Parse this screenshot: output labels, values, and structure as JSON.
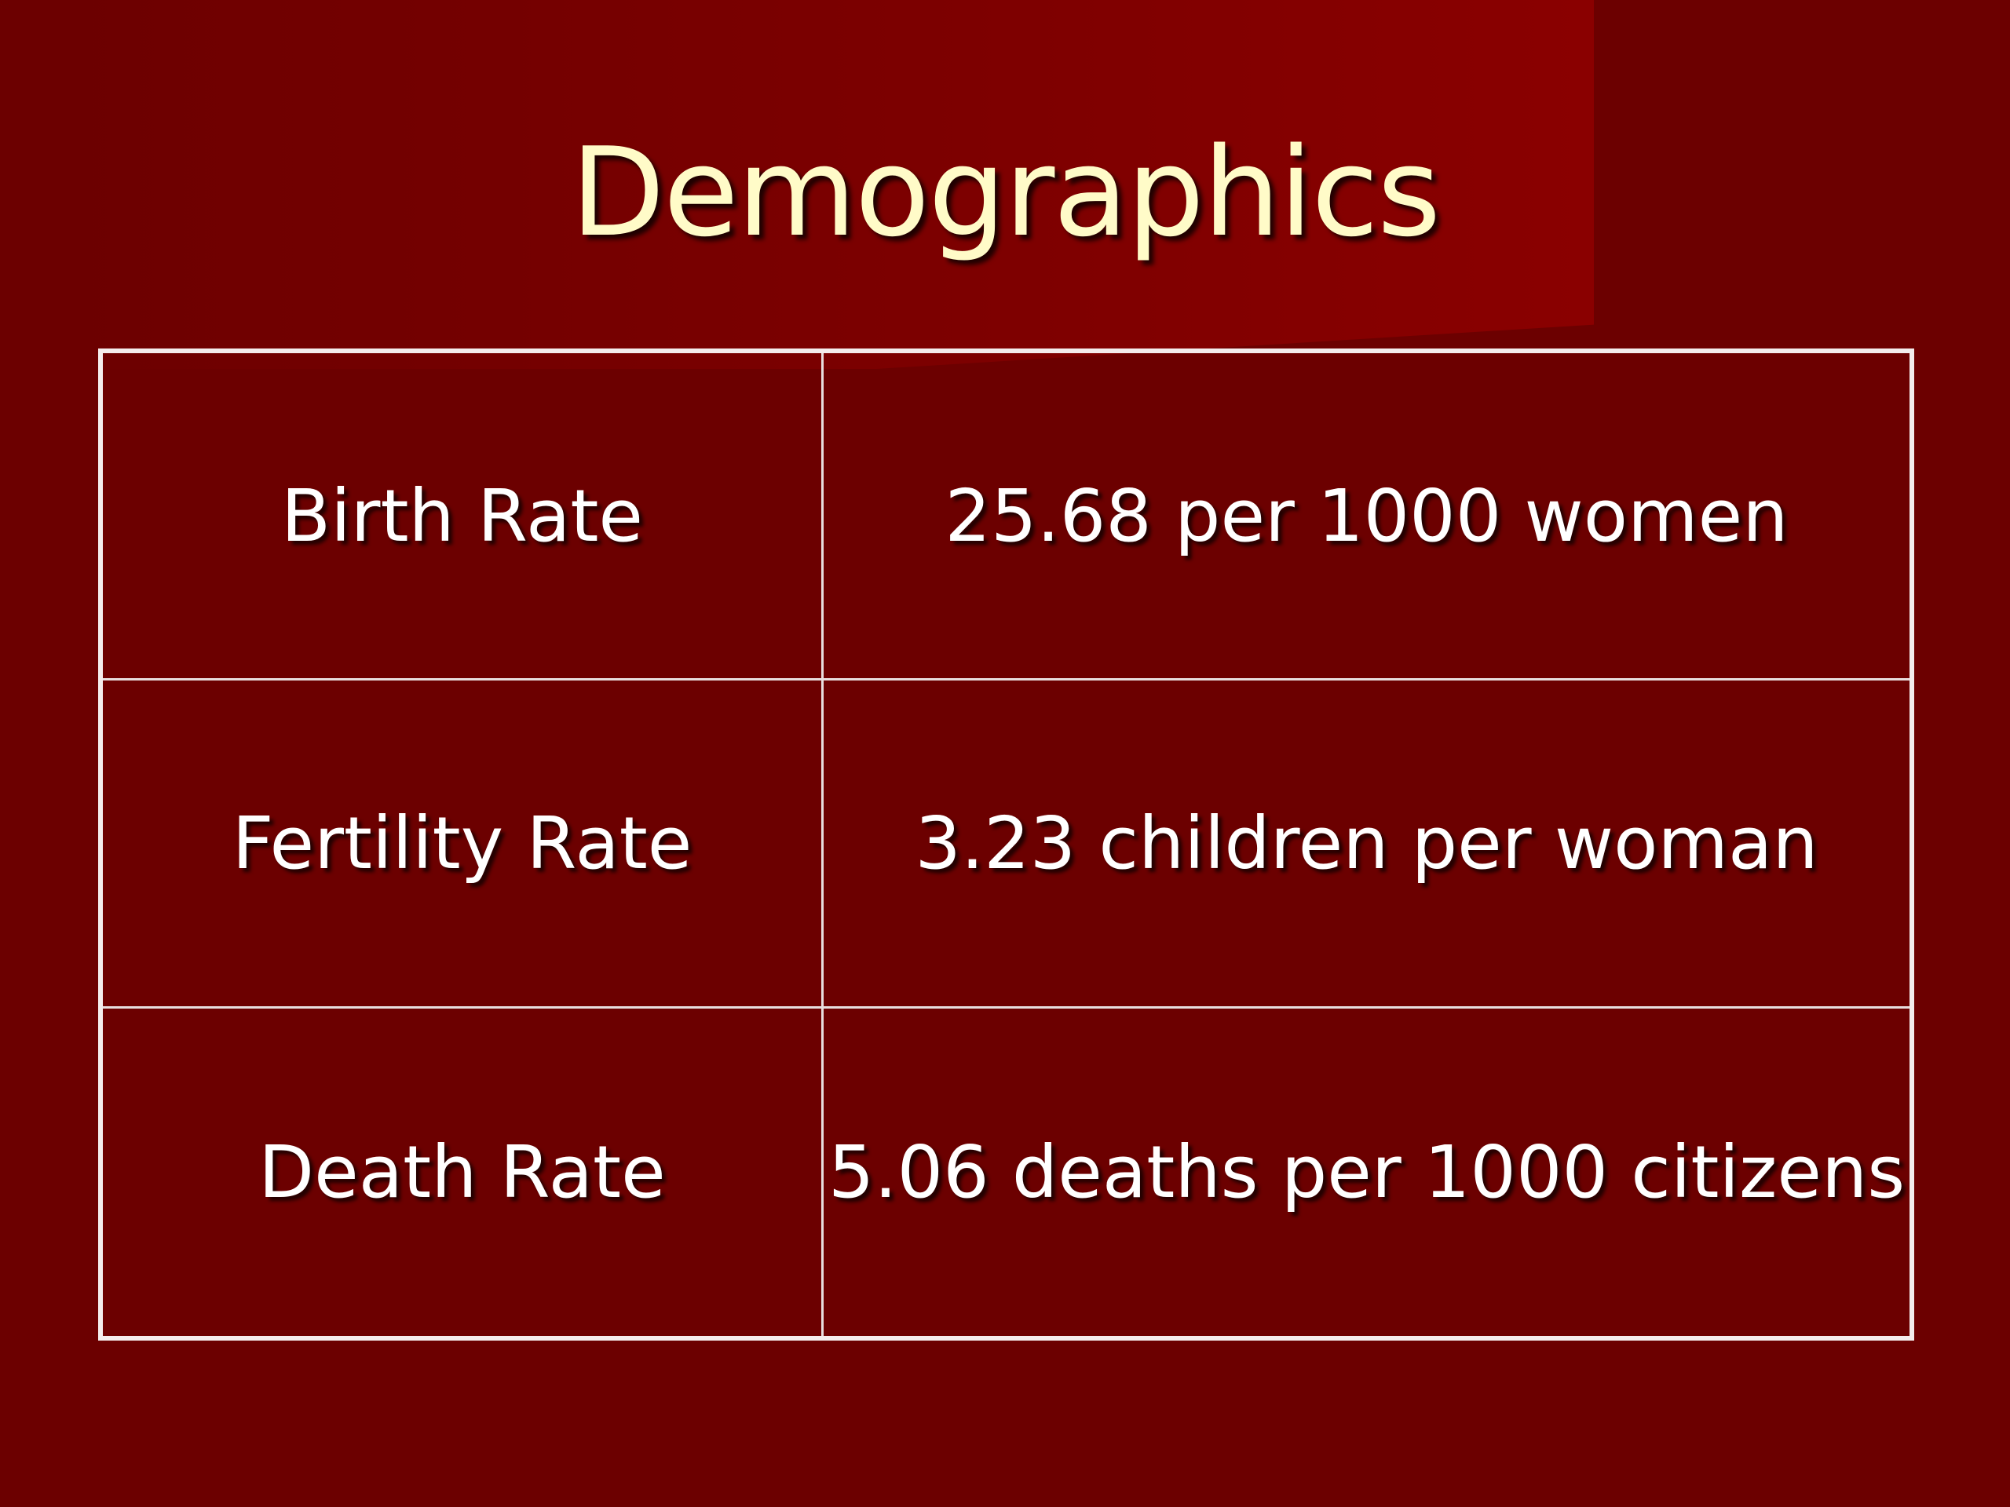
{
  "slide": {
    "title": "Demographics",
    "background_color": "#6c0000",
    "title_color": "#fffbc8",
    "text_color": "#ffffff"
  },
  "table": {
    "rows": [
      {
        "label": "Birth Rate",
        "value": "25.68 per 1000 women"
      },
      {
        "label": "Fertility Rate",
        "value": "3.23 children per woman"
      },
      {
        "label": "Death Rate",
        "value": "5.06 deaths per 1000 citizens"
      }
    ]
  }
}
